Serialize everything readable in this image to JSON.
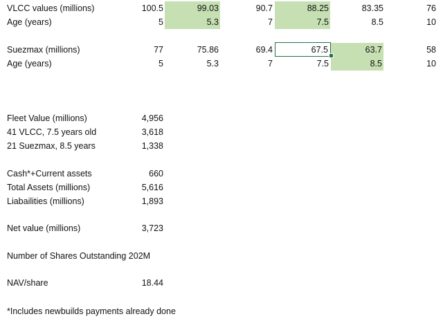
{
  "vlcc": {
    "label": "VLCC values (millions)",
    "values": [
      "100.5",
      "99.03",
      "90.7",
      "88.25",
      "83.35",
      "76"
    ],
    "age_label": "Age (years)",
    "ages": [
      "5",
      "5.3",
      "7",
      "7.5",
      "8.5",
      "10"
    ]
  },
  "suezmax": {
    "label": "Suezmax (millions)",
    "values": [
      "77",
      "75.86",
      "69.4",
      "67.5",
      "63.7",
      "58"
    ],
    "age_label": "Age (years)",
    "ages": [
      "5",
      "5.3",
      "7",
      "7.5",
      "8.5",
      "10"
    ]
  },
  "summary": [
    {
      "label": "Fleet Value (millions)",
      "value": "4,956"
    },
    {
      "label": "41 VLCC, 7.5 years old",
      "value": "3,618"
    },
    {
      "label": "21 Suezmax, 8.5 years",
      "value": "1,338"
    },
    {
      "label": "Cash*+Current assets",
      "value": "660"
    },
    {
      "label": "Total Assets (millions)",
      "value": "5,616"
    },
    {
      "label": "Liabailities (millions)",
      "value": "1,893"
    },
    {
      "label": "Net value (millions)",
      "value": "3,723"
    },
    {
      "label": "Number of Shares Outstanding 202M",
      "value": ""
    },
    {
      "label": "NAV/share",
      "value": "18.44"
    }
  ],
  "footnote": "*Includes newbuilds payments already done",
  "colors": {
    "highlight": "#c6e0b4",
    "selection": "#217346"
  }
}
